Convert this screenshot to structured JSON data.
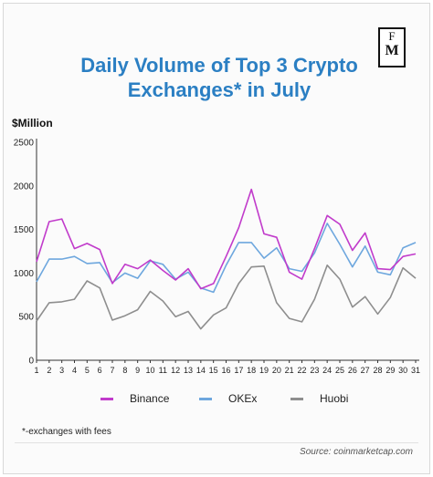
{
  "header": {
    "title_line1": "Daily Volume of Top 3 Crypto",
    "title_line2": "Exchanges* in July",
    "logo_top": "F",
    "logo_bottom": "M"
  },
  "footnote": "*-exchanges with fees",
  "source": "Source: coinmarketcap.com",
  "chart_data": {
    "type": "line",
    "title": "Daily Volume of Top 3 Crypto Exchanges* in July",
    "ylabel": "$Million",
    "xlabel": "",
    "x": [
      1,
      2,
      3,
      4,
      5,
      6,
      7,
      8,
      9,
      10,
      11,
      12,
      13,
      14,
      15,
      16,
      17,
      18,
      19,
      20,
      21,
      22,
      23,
      24,
      25,
      26,
      27,
      28,
      29,
      30,
      31
    ],
    "ylim": [
      0,
      2500
    ],
    "yticks": [
      0,
      500,
      1000,
      1500,
      2000,
      2500
    ],
    "grid": false,
    "legend": "bottom",
    "series": [
      {
        "name": "Binance",
        "color": "#c13bcb",
        "values": [
          1130,
          1590,
          1620,
          1280,
          1340,
          1270,
          880,
          1100,
          1050,
          1150,
          1030,
          920,
          1050,
          820,
          880,
          1190,
          1520,
          1960,
          1450,
          1410,
          1010,
          930,
          1280,
          1660,
          1560,
          1260,
          1460,
          1050,
          1040,
          1190,
          1220
        ]
      },
      {
        "name": "OKEx",
        "color": "#6ea7de",
        "values": [
          900,
          1160,
          1160,
          1190,
          1110,
          1120,
          890,
          1000,
          940,
          1140,
          1100,
          930,
          1010,
          830,
          780,
          1090,
          1350,
          1350,
          1170,
          1290,
          1050,
          1020,
          1230,
          1570,
          1330,
          1070,
          1310,
          1010,
          980,
          1290,
          1350
        ]
      },
      {
        "name": "Huobi",
        "color": "#8e8e8e",
        "values": [
          450,
          660,
          670,
          700,
          910,
          830,
          460,
          510,
          580,
          790,
          680,
          500,
          560,
          360,
          520,
          600,
          880,
          1070,
          1080,
          660,
          480,
          440,
          700,
          1090,
          930,
          610,
          730,
          530,
          720,
          1060,
          940
        ]
      }
    ]
  }
}
